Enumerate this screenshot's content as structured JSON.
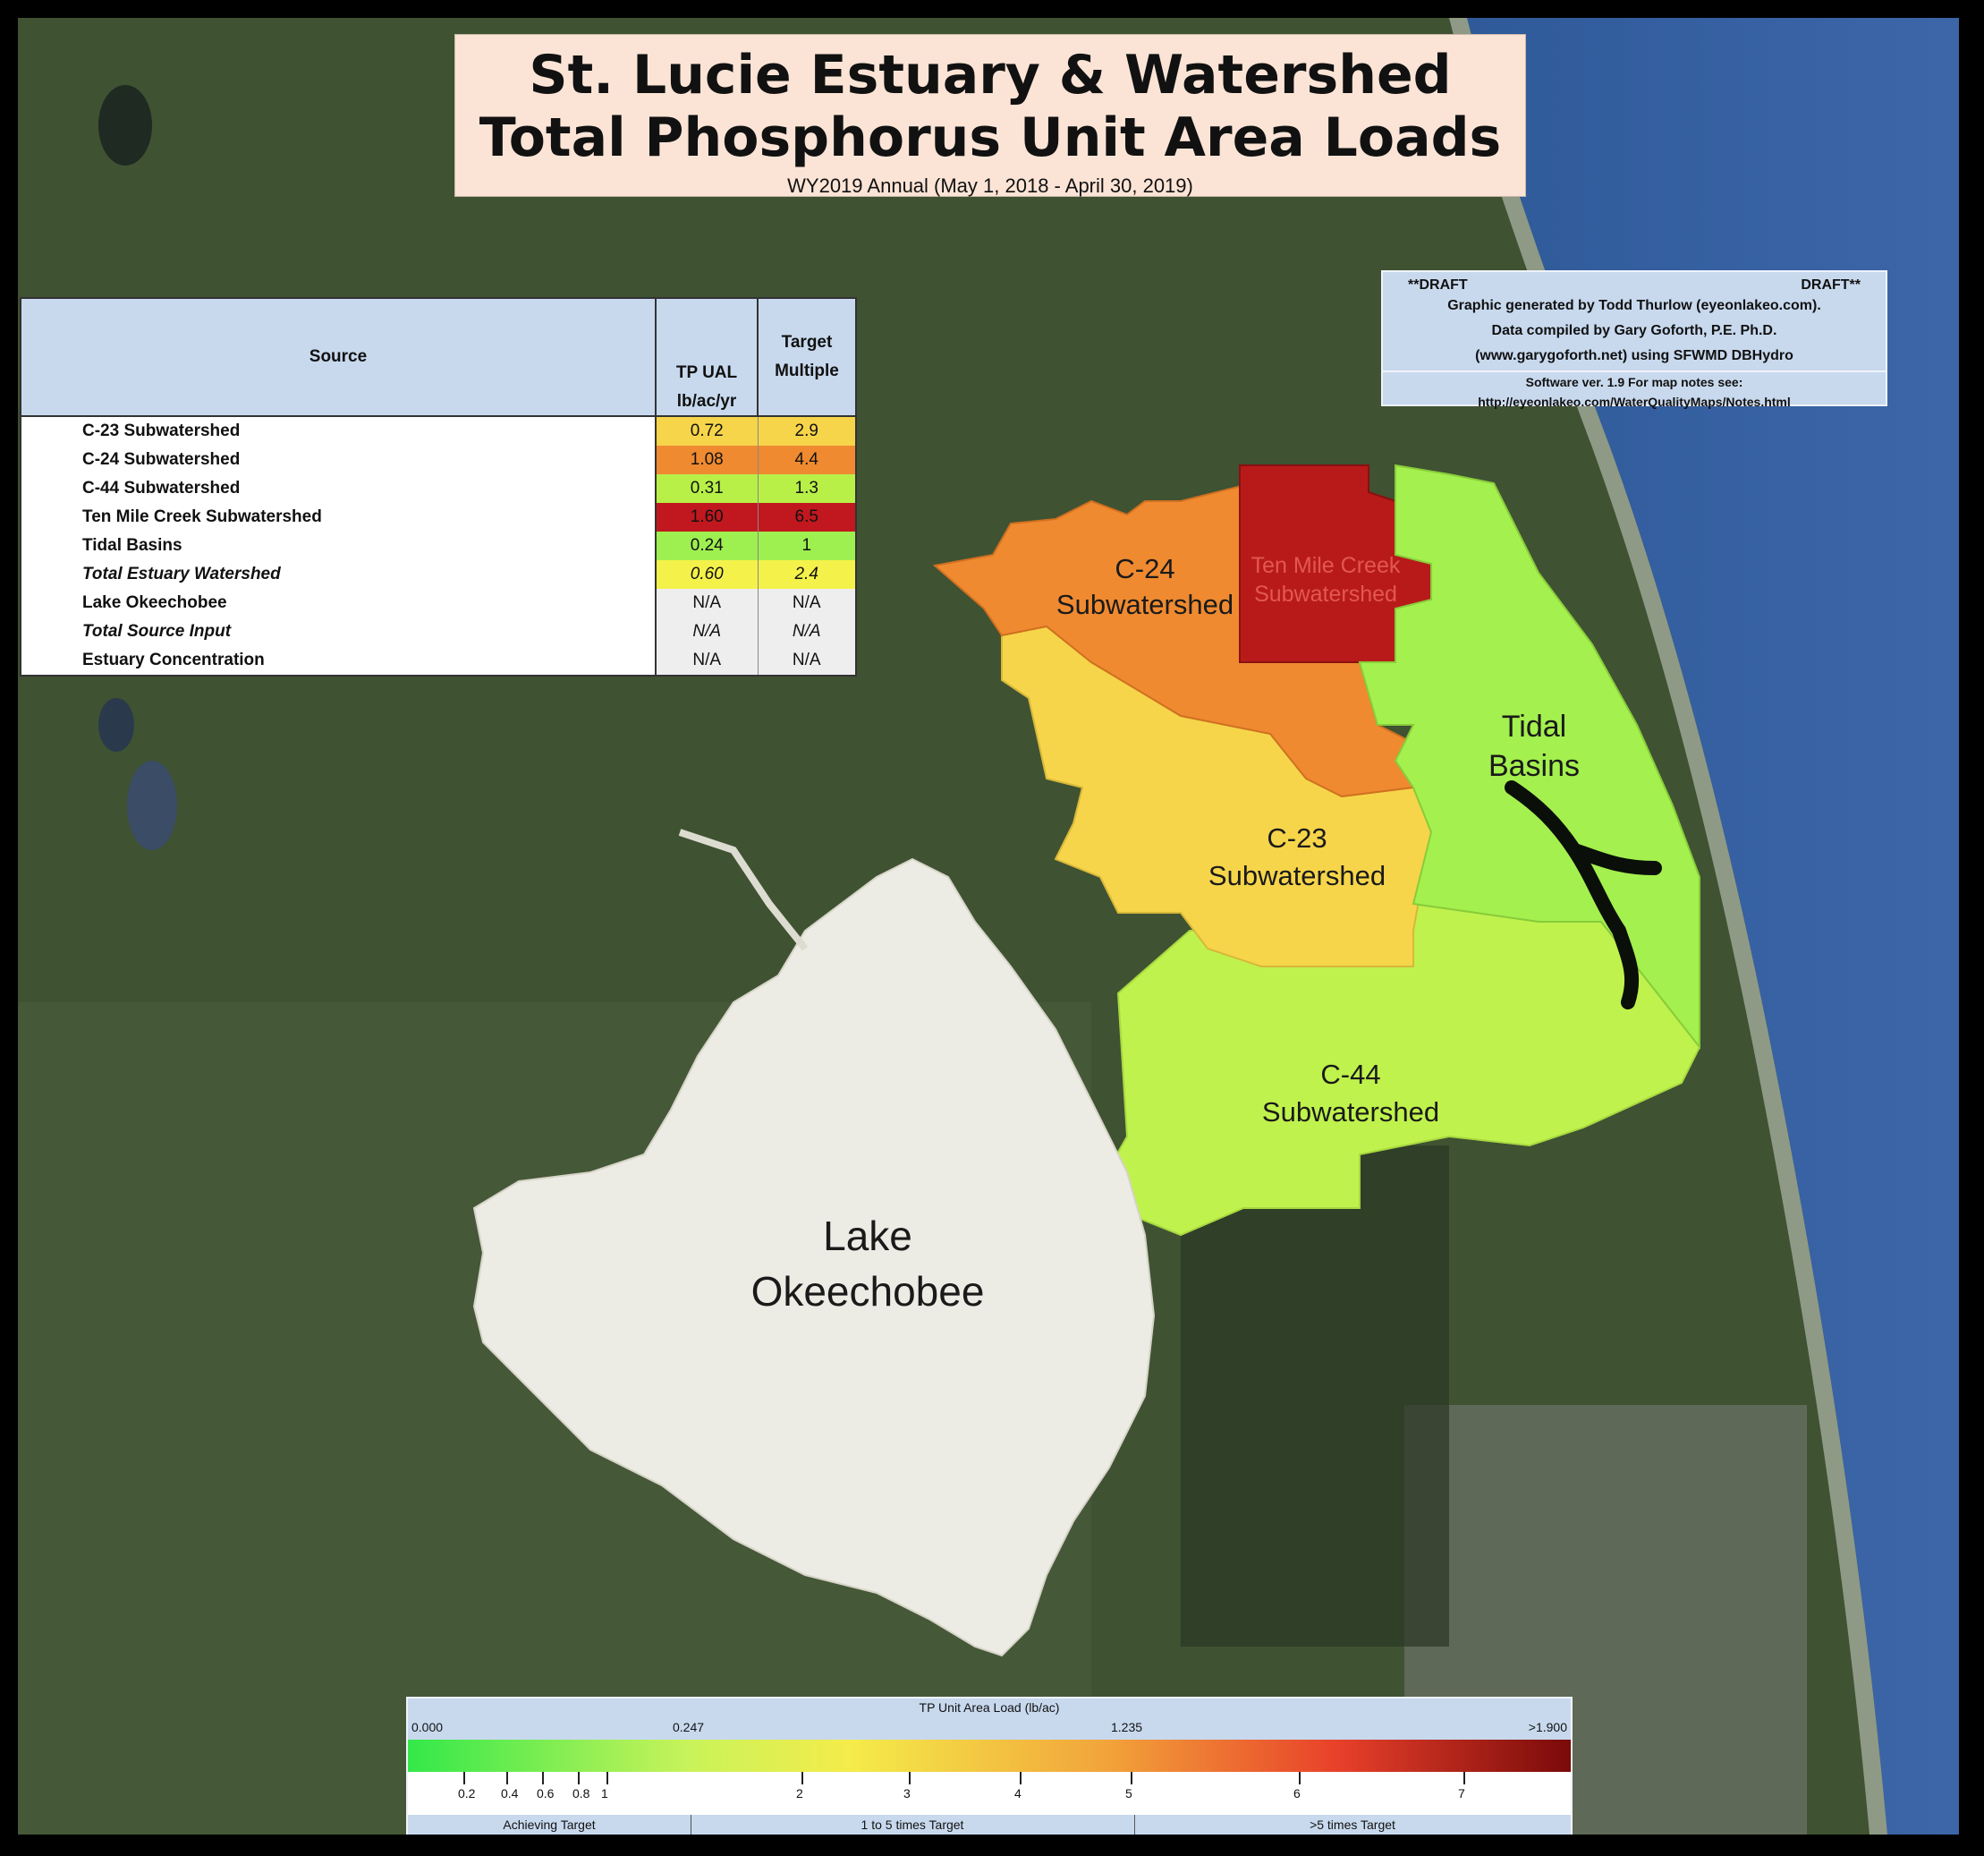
{
  "title": {
    "line1": "St. Lucie Estuary & Watershed",
    "line2": "Total Phosphorus Unit Area Loads",
    "subtitle": "WY2019 Annual (May 1, 2018 - April 30, 2019)"
  },
  "credits": {
    "draft_left": "**DRAFT",
    "draft_right": "DRAFT**",
    "line1": "Graphic generated by Todd Thurlow (eyeonlakeo.com).",
    "line2": "Data compiled by Gary Goforth, P.E. Ph.D.",
    "line3": "(www.garygoforth.net) using SFWMD DBHydro",
    "line4": "Software ver. 1.9 For map notes see:",
    "line5": "http://eyeonlakeo.com/WaterQualityMaps/Notes.html"
  },
  "table": {
    "headers": {
      "source": "Source",
      "tp_ual": "TP UAL",
      "tp_unit": "lb/ac/yr",
      "target": "Target",
      "multiple": "Multiple"
    },
    "rows": [
      {
        "source": "C-23 Subwatershed",
        "tp": "0.72",
        "mult": "2.9",
        "color": "#f6d54a",
        "mcolor": "#f6d54a"
      },
      {
        "source": "C-24 Subwatershed",
        "tp": "1.08",
        "mult": "4.4",
        "color": "#ef8a30",
        "mcolor": "#ef8a30"
      },
      {
        "source": "C-44 Subwatershed",
        "tp": "0.31",
        "mult": "1.3",
        "color": "#b8f048",
        "mcolor": "#b8f048"
      },
      {
        "source": "Ten Mile Creek Subwatershed",
        "tp": "1.60",
        "mult": "6.5",
        "color": "#c0181e",
        "mcolor": "#c0181e"
      },
      {
        "source": "Tidal Basins",
        "tp": "0.24",
        "mult": "1",
        "color": "#9ef050",
        "mcolor": "#9ef050"
      },
      {
        "source": "Total Estuary Watershed",
        "tp": "0.60",
        "mult": "2.4",
        "color": "#f4f24a",
        "mcolor": "#f4f24a"
      },
      {
        "source": "Lake Okeechobee",
        "tp": "N/A",
        "mult": "N/A",
        "color": "#eeeeee",
        "mcolor": "#eeeeee"
      },
      {
        "source": "Total Source Input",
        "tp": "N/A",
        "mult": "N/A",
        "color": "#eeeeee",
        "mcolor": "#eeeeee"
      },
      {
        "source": "Estuary Concentration",
        "tp": "N/A",
        "mult": "N/A",
        "color": "#eeeeee",
        "mcolor": "#eeeeee"
      }
    ]
  },
  "regions": {
    "c24": "C-24\nSubwatershed",
    "tenmile": "Ten Mile Creek\nSubwatershed",
    "tidal": "Tidal\nBasins",
    "c23": "C-23\nSubwatershed",
    "c44": "C-44\nSubwatershed",
    "lake": "Lake\nOkeechobee",
    "colors": {
      "c24": "#ef8a30",
      "tenmile": "#b81a1a",
      "tidal": "#a4f04e",
      "c23": "#f6d54a",
      "c44": "#bff24c",
      "lake": "#ecebe4"
    }
  },
  "legend": {
    "title": "TP Unit Area Load (lb/ac)",
    "scale_labels": [
      "0.000",
      "0.247",
      "1.235",
      ">1.900"
    ],
    "tick_labels": [
      "0.2",
      "0.4",
      "0.6",
      "0.8",
      "1",
      "2",
      "3",
      "4",
      "5",
      "6",
      "7"
    ],
    "categories": [
      "Achieving Target",
      "1 to 5 times Target",
      ">5 times Target"
    ]
  }
}
